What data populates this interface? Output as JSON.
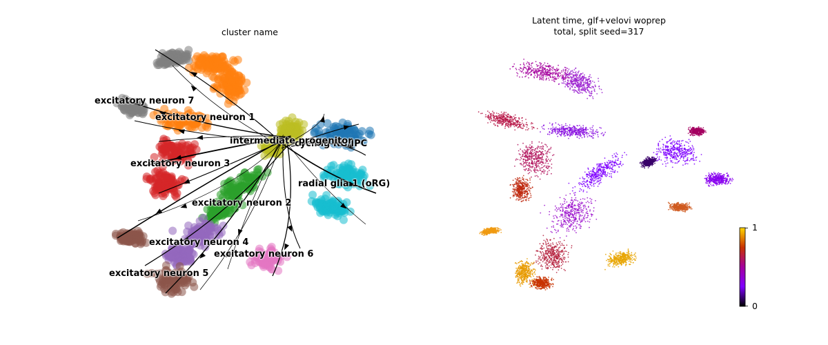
{
  "left_panel": {
    "title": "cluster name",
    "chart_data": {
      "type": "scatter",
      "title": "cluster name",
      "grid": false,
      "axes_visible": false,
      "clusters": [
        {
          "name": "excitatory neuron 7",
          "color": "#7f7f7f"
        },
        {
          "name": "excitatory neuron 1",
          "color": "#ff7f0e"
        },
        {
          "name": "intermediate progenitor",
          "color": "#bcbd22"
        },
        {
          "name": "cycling RG/IPC",
          "color": "#1f77b4"
        },
        {
          "name": "radial glia 1 (oRG)",
          "color": "#17becf"
        },
        {
          "name": "excitatory neuron 3",
          "color": "#d62728"
        },
        {
          "name": "excitatory neuron 2",
          "color": "#2ca02c"
        },
        {
          "name": "excitatory neuron 4",
          "color": "#9467bd"
        },
        {
          "name": "excitatory neuron 6",
          "color": "#e377c2"
        },
        {
          "name": "excitatory neuron 5",
          "color": "#8c564b"
        }
      ],
      "overlay": "velocity streamlines"
    }
  },
  "right_panel": {
    "title_line1": "Latent time, glf+velovi woprep",
    "title_line2": "total, split seed=317",
    "chart_data": {
      "type": "scatter",
      "title": "Latent time, glf+velovi woprep total, split seed=317",
      "colorbar": {
        "min": 0,
        "max": 1,
        "min_label": "0",
        "max_label": "1",
        "colormap": "gnuplot"
      },
      "grid": false,
      "axes_visible": false
    }
  }
}
